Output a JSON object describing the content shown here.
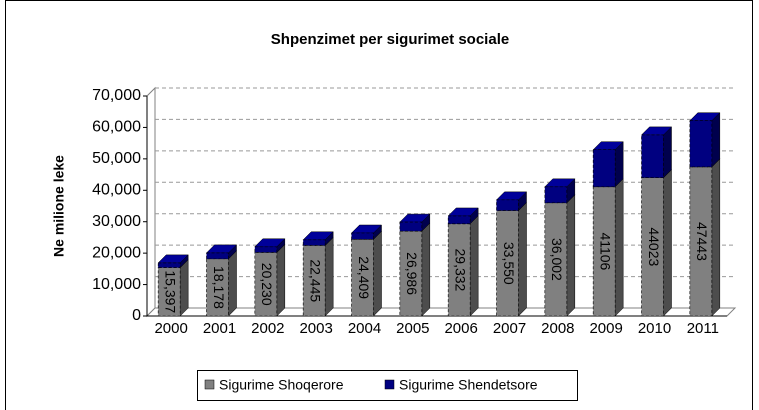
{
  "chart_data": {
    "type": "bar",
    "stacked": true,
    "title": "Shpenzimet per sigurimet sociale",
    "y_label": "Ne milione leke",
    "categories": [
      "2000",
      "2001",
      "2002",
      "2003",
      "2004",
      "2005",
      "2006",
      "2007",
      "2008",
      "2009",
      "2010",
      "2011"
    ],
    "series": [
      {
        "name": "Sigurime Shoqerore",
        "color": "#808080",
        "values": [
          15397,
          18178,
          20230,
          22445,
          24409,
          26986,
          29332,
          33550,
          36002,
          41106,
          44023,
          47443
        ],
        "value_labels": [
          "15,397",
          "18,178",
          "20,230",
          "22,445",
          "24,409",
          "26,986",
          "29,332",
          "33,550",
          "36,002",
          "41106",
          "44023",
          "47443"
        ]
      },
      {
        "name": "Sigurime Shendetsore",
        "color": "#000080",
        "values": [
          1500,
          1900,
          1800,
          1800,
          2000,
          2900,
          2500,
          3400,
          5100,
          11800,
          13600,
          14700
        ]
      }
    ],
    "ylim": [
      0,
      70000
    ],
    "yticks": [
      0,
      {
        "value": 10000,
        "label": "10,000"
      },
      {
        "value": 20000,
        "label": "20,000"
      },
      {
        "value": 30000,
        "label": "30,000"
      },
      {
        "value": 40000,
        "label": "40,000"
      },
      {
        "value": 50000,
        "label": "50,000"
      },
      {
        "value": 60000,
        "label": "60,000"
      },
      {
        "value": 70000,
        "label": "70,000"
      }
    ],
    "grid": true,
    "legend": "bottom"
  }
}
